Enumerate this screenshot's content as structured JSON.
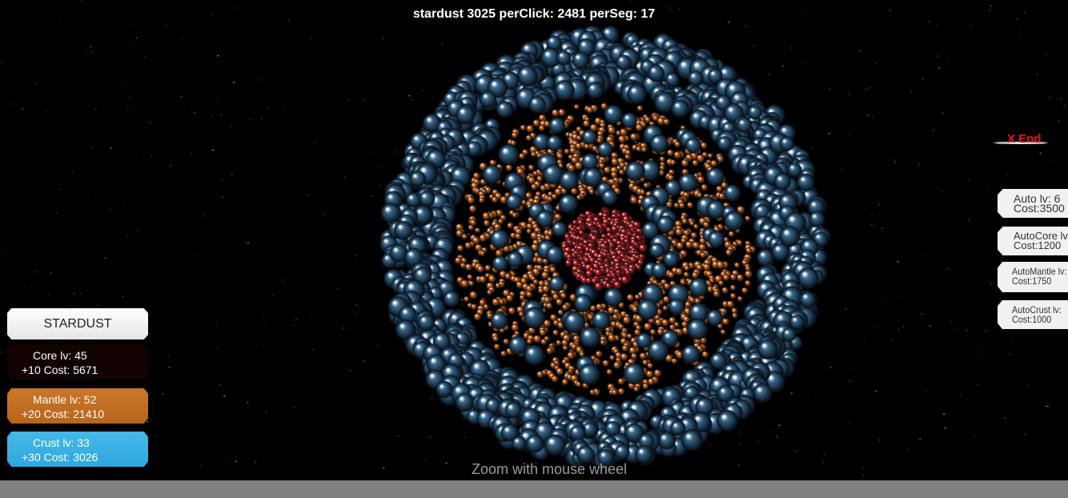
{
  "hud": {
    "stats": "stardust 3025 perClick: 2481 perSeg: 17",
    "hint": "Zoom with mouse wheel"
  },
  "left_panel": {
    "stardust_button": "STARDUST",
    "upgrades": [
      {
        "line1": "Core    lv: 45",
        "line2": "+10 Cost: 5671",
        "color": "#120303"
      },
      {
        "line1": "Mantle    lv: 52",
        "line2": "+20 Cost: 21410",
        "color": "#c06f24"
      },
      {
        "line1": "Crust    lv: 33",
        "line2": "+30 Cost: 3026",
        "color": "#3cb2e4"
      }
    ]
  },
  "right_panel": {
    "end_button": "X End",
    "autos": [
      {
        "line1": "Auto lv: 6",
        "line2": "Cost:3500"
      },
      {
        "line1": "AutoCore lv",
        "line2": "Cost:1200"
      },
      {
        "line1": "AutoMantle lv:",
        "line2": "Cost:1750"
      },
      {
        "line1": "AutoCrust lv:",
        "line2": "Cost:1000"
      }
    ]
  },
  "colors": {
    "core": "#d02020",
    "mantle": "#e07020",
    "crust": "#3a6a90",
    "background": "#000000",
    "footer": "#808080"
  }
}
